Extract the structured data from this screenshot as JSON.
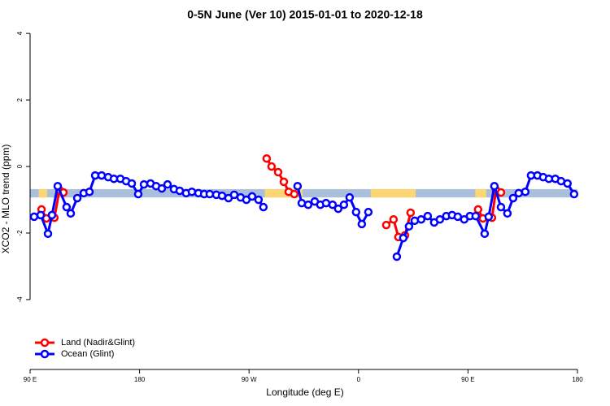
{
  "chart_data": {
    "type": "line",
    "title": "0-5N June (Ver 10)   2015-01-01 to 2020-12-18",
    "x_label": "Longitude (deg E)",
    "y_label": "XCO2 - MLO trend (ppm)",
    "xlim": [
      90,
      540
    ],
    "ylim": [
      -6.1,
      4.15
    ],
    "xticks": [
      {
        "value": 90,
        "label": "90 E"
      },
      180,
      {
        "value": 270,
        "label": "90 W"
      },
      {
        "value": 360,
        "label": "0"
      },
      {
        "value": 450,
        "label": "90 E"
      },
      {
        "value": 540,
        "label": "180"
      }
    ],
    "yticks": [
      -4,
      -2,
      0,
      2,
      4
    ],
    "legend": "bottomleft",
    "band": {
      "ylim": [
        -0.93,
        -0.68
      ],
      "color": "#a9bfdc",
      "land_color": "#fbd673",
      "land": [
        [
          97,
          104
        ],
        [
          283,
          314
        ],
        [
          370,
          407
        ],
        [
          456,
          465
        ]
      ]
    },
    "series": [
      {
        "name": "Land (Nadir&Glint)",
        "color": "#ff0000",
        "x": [
          99.4,
          103.4,
          110,
          114.1,
          117.4,
          null,
          284.5,
          288.5,
          293.9,
          298.6,
          302.6,
          307.2,
          null,
          382.8,
          388.8,
          392.8,
          398.2,
          402.8,
          null,
          458.3,
          462.3,
          469.7,
          473,
          477.1
        ],
        "values": [
          -1.29,
          -1.56,
          -1.54,
          -0.71,
          -0.78,
          null,
          0.24,
          0,
          -0.17,
          -0.46,
          -0.76,
          -0.83,
          null,
          -1.76,
          -1.59,
          -2.12,
          -2.07,
          -1.39,
          null,
          -1.29,
          -1.56,
          -1.54,
          -0.71,
          -0.78
        ]
      },
      {
        "name": "Ocean (Glint)",
        "color": "#0000ff",
        "x": [
          93.3,
          98.7,
          104.7,
          108,
          112.7,
          120,
          123.4,
          128.8,
          134.1,
          138.8,
          143.5,
          148.8,
          154.2,
          158.9,
          164.2,
          168.9,
          173.6,
          178.9,
          183.6,
          189,
          193.6,
          198.3,
          203,
          208.3,
          213,
          218.3,
          223,
          228.4,
          233.1,
          237.7,
          243.1,
          247.8,
          253.1,
          257.8,
          263.1,
          267.8,
          272.5,
          277.8,
          281.8,
          null,
          309.9,
          313.3,
          318.6,
          324,
          328.6,
          333.3,
          338.7,
          343.3,
          348,
          352.7,
          358,
          362.7,
          368.1,
          null,
          391.5,
          396.8,
          401.5,
          406.2,
          411.5,
          416.9,
          422.2,
          426.9,
          432.2,
          436.9,
          441.6,
          446.9,
          451.6,
          456.3,
          463.7,
          467,
          471.7,
          477.1,
          482.4,
          487.1,
          491.7,
          497.1,
          501.8,
          507.1,
          511.8,
          516.5,
          521.8,
          526.5,
          531.8,
          537.2
        ],
        "values": [
          -1.51,
          -1.46,
          -2.02,
          -1.46,
          -0.59,
          -1.22,
          -1.41,
          -0.95,
          -0.8,
          -0.76,
          -0.27,
          -0.27,
          -0.32,
          -0.37,
          -0.37,
          -0.44,
          -0.51,
          -0.83,
          -0.54,
          -0.51,
          -0.59,
          -0.66,
          -0.54,
          -0.68,
          -0.73,
          -0.8,
          -0.76,
          -0.8,
          -0.83,
          -0.83,
          -0.85,
          -0.88,
          -0.95,
          -0.85,
          -0.93,
          -1.0,
          -0.9,
          -1.0,
          -1.22,
          null,
          -0.59,
          -1.1,
          -1.15,
          -1.05,
          -1.15,
          -1.1,
          -1.15,
          -1.27,
          -1.15,
          -0.93,
          -1.37,
          -1.73,
          -1.37,
          null,
          -2.71,
          -2.15,
          -1.8,
          -1.63,
          -1.59,
          -1.49,
          -1.68,
          -1.59,
          -1.49,
          -1.46,
          -1.51,
          -1.59,
          -1.49,
          -1.49,
          -2.02,
          -1.51,
          -0.59,
          -1.22,
          -1.41,
          -0.95,
          -0.8,
          -0.76,
          -0.27,
          -0.27,
          -0.32,
          -0.37,
          -0.37,
          -0.44,
          -0.51,
          -0.83
        ]
      }
    ]
  }
}
